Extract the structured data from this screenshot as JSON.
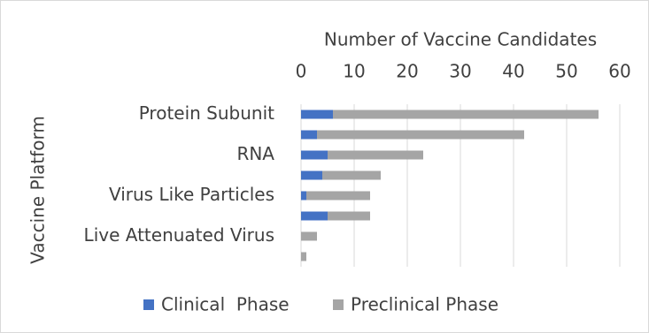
{
  "chart_data": {
    "type": "bar",
    "orientation": "horizontal",
    "stacked": true,
    "x_label": "Number of Vaccine Candidates",
    "y_label": "Vaccine Platform",
    "categories": [
      "Protein Subunit",
      null,
      "RNA",
      null,
      "Virus Like Particles",
      null,
      "Live Attenuated Virus",
      null
    ],
    "series": [
      {
        "name": "Clinical  Phase",
        "color": "#4472c4",
        "values": [
          6,
          3,
          5,
          4,
          1,
          5,
          0,
          0
        ]
      },
      {
        "name": "Preclinical Phase",
        "color": "#a5a5a5",
        "values": [
          50,
          39,
          18,
          11,
          12,
          8,
          3,
          1
        ]
      }
    ],
    "xlim": [
      0,
      60
    ],
    "xticks": [
      0,
      10,
      20,
      30,
      40,
      50,
      60
    ],
    "grid": true,
    "legend": "bottom"
  }
}
